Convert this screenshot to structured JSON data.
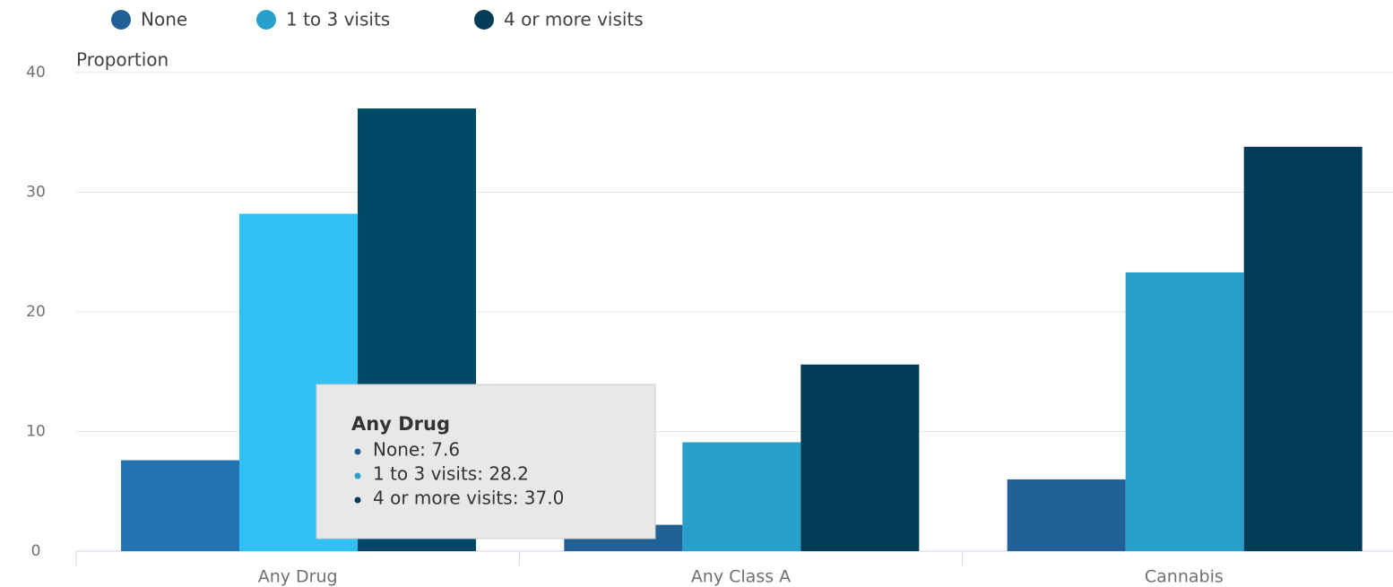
{
  "chart_data": {
    "type": "bar",
    "y_axis_label": "Proportion",
    "categories": [
      "Any Drug",
      "Any Class A",
      "Cannabis"
    ],
    "series": [
      {
        "name": "None",
        "color": "#206095",
        "values": [
          7.6,
          2.2,
          6.0
        ]
      },
      {
        "name": "1 to 3 visits",
        "color": "#27a0cc",
        "values": [
          28.2,
          9.1,
          23.3
        ]
      },
      {
        "name": "4 or more visits",
        "color": "#003c57",
        "values": [
          37.0,
          15.6,
          33.8
        ]
      }
    ],
    "ylim": [
      0,
      40
    ],
    "yticks": [
      0,
      10,
      20,
      30,
      40
    ],
    "grid": true,
    "legend": "top",
    "tooltip": {
      "title": "Any Drug",
      "items": [
        "None: 7.6",
        "1 to 3 visits: 28.2",
        "4 or more visits: 37.0"
      ]
    }
  }
}
